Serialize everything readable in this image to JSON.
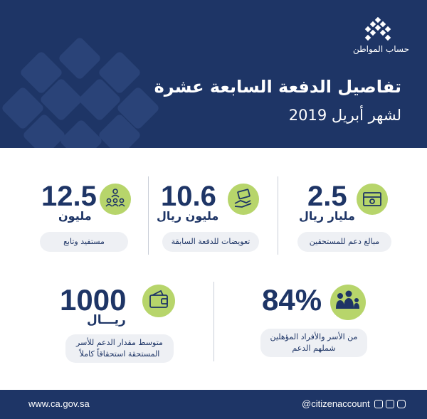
{
  "header": {
    "logo_text": "حساب المواطن",
    "title": "تفاصيل الدفعة السابعة عشرة",
    "subtitle": "لشهر أبريل 2019"
  },
  "stats": {
    "support": {
      "value": "2.5",
      "unit": "مليار ريال",
      "label": "مبالغ دعم للمستحقين",
      "icon": "money-stack-icon"
    },
    "compensation": {
      "value": "10.6",
      "unit": "مليون ريال",
      "label": "تعويضات للدفعة السابقة",
      "icon": "hand-money-icon"
    },
    "beneficiaries": {
      "value": "12.5",
      "unit": "مليون",
      "label": "مستفيد وتابع",
      "icon": "people-group-icon"
    },
    "percentage": {
      "value": "84%",
      "label_line1": "من الأسر والأفراد المؤهلين",
      "label_line2": "شملهم الدعم",
      "icon": "family-icon"
    },
    "average": {
      "value": "1000",
      "unit": "ريـــال",
      "label_line1": "متوسط مقدار الدعم للأسر",
      "label_line2": "المستحقة استحقاقاً كاملاً",
      "icon": "wallet-icon"
    }
  },
  "footer": {
    "website": "www.ca.gov.sa",
    "handle": "@citizenaccount"
  },
  "colors": {
    "navy": "#1e3566",
    "accent": "#b7d56b",
    "pill": "#eef0f4"
  }
}
